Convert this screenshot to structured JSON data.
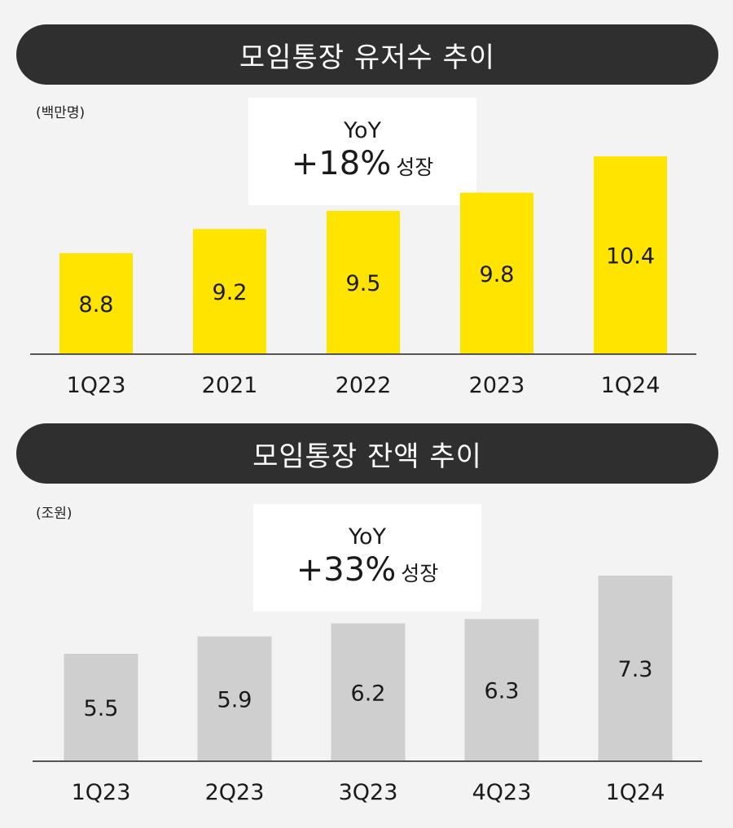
{
  "chart_data": [
    {
      "type": "bar",
      "title": "모임통장 유저수 추이",
      "unit": "(백만명)",
      "annotation": {
        "label": "YoY",
        "value": "+18%",
        "suffix": "성장"
      },
      "categories": [
        "1Q23",
        "2021",
        "2022",
        "2023",
        "1Q24"
      ],
      "values": [
        8.8,
        9.2,
        9.5,
        9.8,
        10.4
      ],
      "value_labels": [
        "8.8",
        "9.2",
        "9.5",
        "9.8",
        "10.4"
      ],
      "bar_color": "#ffe400",
      "grid": false
    },
    {
      "type": "bar",
      "title": "모임통장 잔액 추이",
      "unit": "(조원)",
      "annotation": {
        "label": "YoY",
        "value": "+33%",
        "suffix": "성장"
      },
      "categories": [
        "1Q23",
        "2Q23",
        "3Q23",
        "4Q23",
        "1Q24"
      ],
      "values": [
        5.5,
        5.9,
        6.2,
        6.3,
        7.3
      ],
      "value_labels": [
        "5.5",
        "5.9",
        "6.2",
        "6.3",
        "7.3"
      ],
      "bar_color": "#cfcfcf",
      "grid": false
    }
  ]
}
